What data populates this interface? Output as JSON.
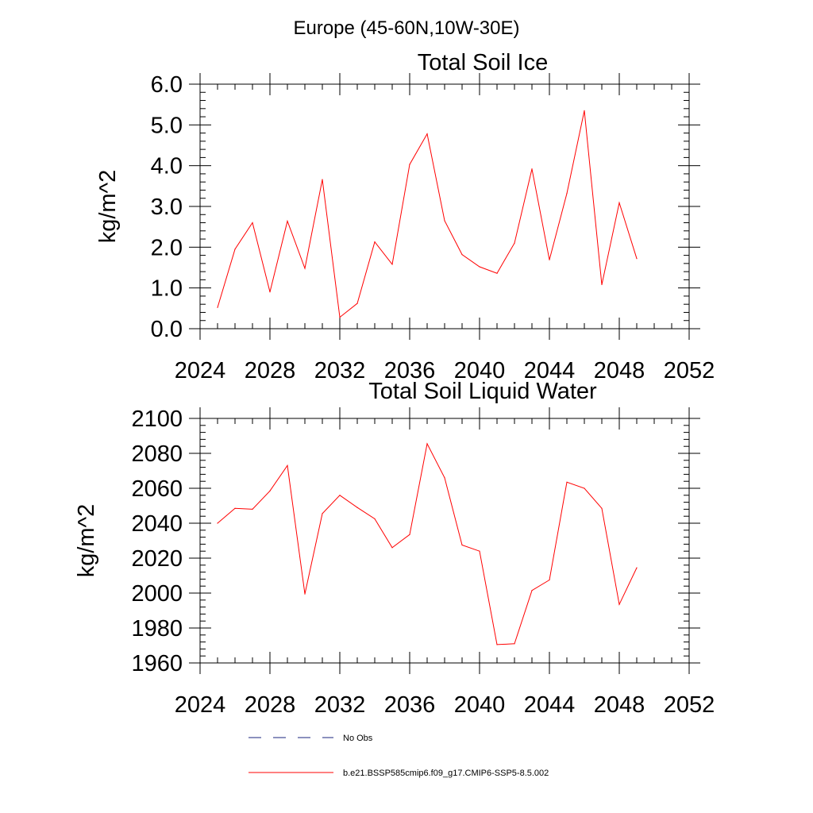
{
  "figure": {
    "suptitle": "Europe (45-60N,10W-30E)"
  },
  "legend": [
    {
      "label": "No Obs",
      "color": "#1a237e",
      "dash": "dashed"
    },
    {
      "label": "b.e21.BSSP585cmip6.f09_g17.CMIP6-SSP5-8.5.002",
      "color": "#ff0000",
      "dash": "solid"
    }
  ],
  "chart_data": [
    {
      "type": "line",
      "title": "Total Soil Ice",
      "xlabel": "",
      "ylabel": "kg/m^2",
      "xlim": [
        2024,
        2052
      ],
      "ylim": [
        0,
        6
      ],
      "xticks": [
        2024,
        2028,
        2032,
        2036,
        2040,
        2044,
        2048,
        2052
      ],
      "yticks": [
        0,
        1,
        2,
        3,
        4,
        5,
        6
      ],
      "ytick_labels": [
        "0.0",
        "1.0",
        "2.0",
        "3.0",
        "4.0",
        "5.0",
        "6.0"
      ],
      "grid": false,
      "series": [
        {
          "name": "b.e21.BSSP585cmip6.f09_g17.CMIP6-SSP5-8.5.002",
          "color": "#ff0000",
          "x": [
            2025,
            2026,
            2027,
            2028,
            2029,
            2030,
            2031,
            2032,
            2033,
            2034,
            2035,
            2036,
            2037,
            2038,
            2039,
            2040,
            2041,
            2042,
            2043,
            2044,
            2045,
            2046,
            2047,
            2048,
            2049
          ],
          "y": [
            0.52,
            1.95,
            2.6,
            0.9,
            2.64,
            1.48,
            3.66,
            0.28,
            0.62,
            2.13,
            1.58,
            4.03,
            4.78,
            2.65,
            1.82,
            1.52,
            1.36,
            2.1,
            3.92,
            1.69,
            3.32,
            5.35,
            1.08,
            3.09,
            1.72
          ]
        }
      ]
    },
    {
      "type": "line",
      "title": "Total Soil Liquid Water",
      "xlabel": "",
      "ylabel": "kg/m^2",
      "xlim": [
        2024,
        2052
      ],
      "ylim": [
        1960,
        2100
      ],
      "xticks": [
        2024,
        2028,
        2032,
        2036,
        2040,
        2044,
        2048,
        2052
      ],
      "yticks": [
        1960,
        1980,
        2000,
        2020,
        2040,
        2060,
        2080,
        2100
      ],
      "ytick_labels": [
        "1960",
        "1980",
        "2000",
        "2020",
        "2040",
        "2060",
        "2080",
        "2100"
      ],
      "grid": false,
      "series": [
        {
          "name": "b.e21.BSSP585cmip6.f09_g17.CMIP6-SSP5-8.5.002",
          "color": "#ff0000",
          "x": [
            2025,
            2026,
            2027,
            2028,
            2029,
            2030,
            2031,
            2032,
            2033,
            2034,
            2035,
            2036,
            2037,
            2038,
            2039,
            2040,
            2041,
            2042,
            2043,
            2044,
            2045,
            2046,
            2047,
            2048,
            2049
          ],
          "y": [
            2040,
            2048.5,
            2048,
            2058.5,
            2073,
            1999.5,
            2045.5,
            2056,
            2049,
            2042.5,
            2026,
            2033.5,
            2085.5,
            2066,
            2027.5,
            2024,
            1970.5,
            1971,
            2001.5,
            2007.5,
            2063.5,
            2060,
            2048.5,
            1993.5,
            2014.5
          ]
        }
      ]
    }
  ]
}
